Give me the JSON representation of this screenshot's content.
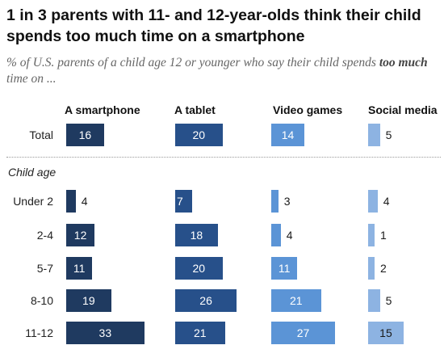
{
  "header": {
    "title": "1 in 3 parents with 11- and 12-year-olds think their child spends too much time on a smartphone",
    "subtitle_prefix": "% of U.S. parents of a child age 12 or younger who say their child spends ",
    "subtitle_emphasis": "too much",
    "subtitle_suffix": " time on ..."
  },
  "chart_data": {
    "type": "bar",
    "title": "1 in 3 parents with 11- and 12-year-olds think their child spends too much time on a smartphone",
    "group_label": "Child age",
    "categories": [
      "Total",
      "Under 2",
      "2-4",
      "5-7",
      "8-10",
      "11-12"
    ],
    "series": [
      {
        "name": "A smartphone",
        "color": "#1f3a60",
        "values": [
          16,
          4,
          12,
          11,
          19,
          33
        ]
      },
      {
        "name": "A tablet",
        "color": "#27508a",
        "values": [
          20,
          7,
          18,
          20,
          26,
          21
        ]
      },
      {
        "name": "Video games",
        "color": "#5b94d6",
        "values": [
          14,
          3,
          4,
          11,
          21,
          27
        ]
      },
      {
        "name": "Social media",
        "color": "#8db3e2",
        "values": [
          5,
          4,
          1,
          2,
          5,
          15
        ]
      }
    ]
  }
}
